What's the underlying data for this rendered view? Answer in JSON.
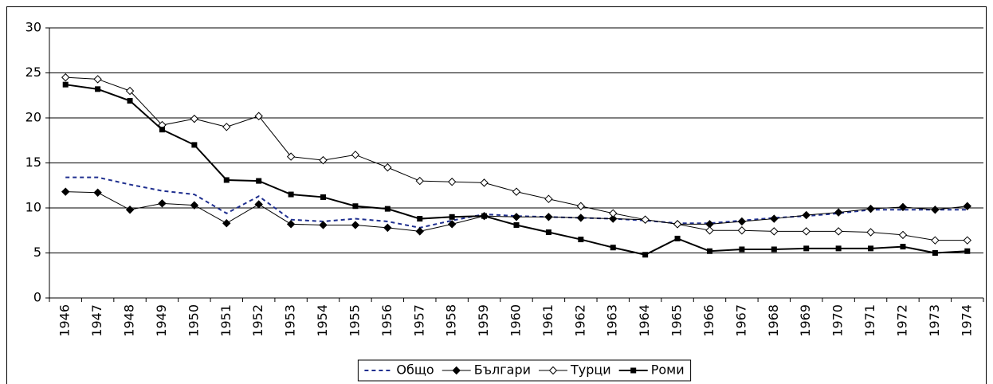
{
  "chart_data": {
    "type": "line",
    "categories": [
      "1946",
      "1947",
      "1948",
      "1949",
      "1950",
      "1951",
      "1952",
      "1953",
      "1954",
      "1955",
      "1956",
      "1957",
      "1958",
      "1959",
      "1960",
      "1961",
      "1962",
      "1963",
      "1964",
      "1965",
      "1966",
      "1967",
      "1968",
      "1969",
      "1970",
      "1971",
      "1972",
      "1973",
      "1974"
    ],
    "series": [
      {
        "name": "Общо",
        "color": "#1f2f8f",
        "dash": true,
        "marker": "none",
        "width": 2,
        "values": [
          13.4,
          13.4,
          12.6,
          11.9,
          11.5,
          9.4,
          11.3,
          8.7,
          8.5,
          8.8,
          8.5,
          7.8,
          8.6,
          9.3,
          9.1,
          9.0,
          8.9,
          8.8,
          8.6,
          8.3,
          8.3,
          8.6,
          8.9,
          9.1,
          9.4,
          9.8,
          9.8,
          9.8,
          9.8
        ]
      },
      {
        "name": "Българи",
        "color": "#000000",
        "dash": false,
        "marker": "diamond-filled",
        "width": 1,
        "values": [
          11.8,
          11.7,
          9.8,
          10.5,
          10.3,
          8.3,
          10.4,
          8.2,
          8.1,
          8.1,
          7.8,
          7.4,
          8.2,
          9.1,
          9.0,
          9.0,
          8.9,
          8.8,
          8.7,
          8.2,
          8.2,
          8.5,
          8.8,
          9.2,
          9.5,
          9.9,
          10.1,
          9.8,
          10.2
        ]
      },
      {
        "name": "Турци",
        "color": "#000000",
        "dash": false,
        "marker": "diamond-open",
        "width": 1,
        "values": [
          24.5,
          24.3,
          23.0,
          19.2,
          19.9,
          19.0,
          20.2,
          15.7,
          15.3,
          15.9,
          14.5,
          13.0,
          12.9,
          12.8,
          11.8,
          11.0,
          10.2,
          9.4,
          8.7,
          8.2,
          7.5,
          7.5,
          7.4,
          7.4,
          7.4,
          7.3,
          7.0,
          6.4,
          6.4
        ]
      },
      {
        "name": "Роми",
        "color": "#000000",
        "dash": false,
        "marker": "square",
        "width": 2,
        "values": [
          23.7,
          23.2,
          21.9,
          18.7,
          17.0,
          13.1,
          13.0,
          11.5,
          11.2,
          10.2,
          9.9,
          8.8,
          9.0,
          9.1,
          8.1,
          7.3,
          6.5,
          5.6,
          4.8,
          6.6,
          5.2,
          5.4,
          5.4,
          5.5,
          5.5,
          5.5,
          5.7,
          5.0,
          5.2
        ]
      }
    ],
    "ylim": [
      0,
      30
    ],
    "yticks": [
      0,
      5,
      10,
      15,
      20,
      25,
      30
    ],
    "grid": true,
    "legend": "bottom"
  }
}
